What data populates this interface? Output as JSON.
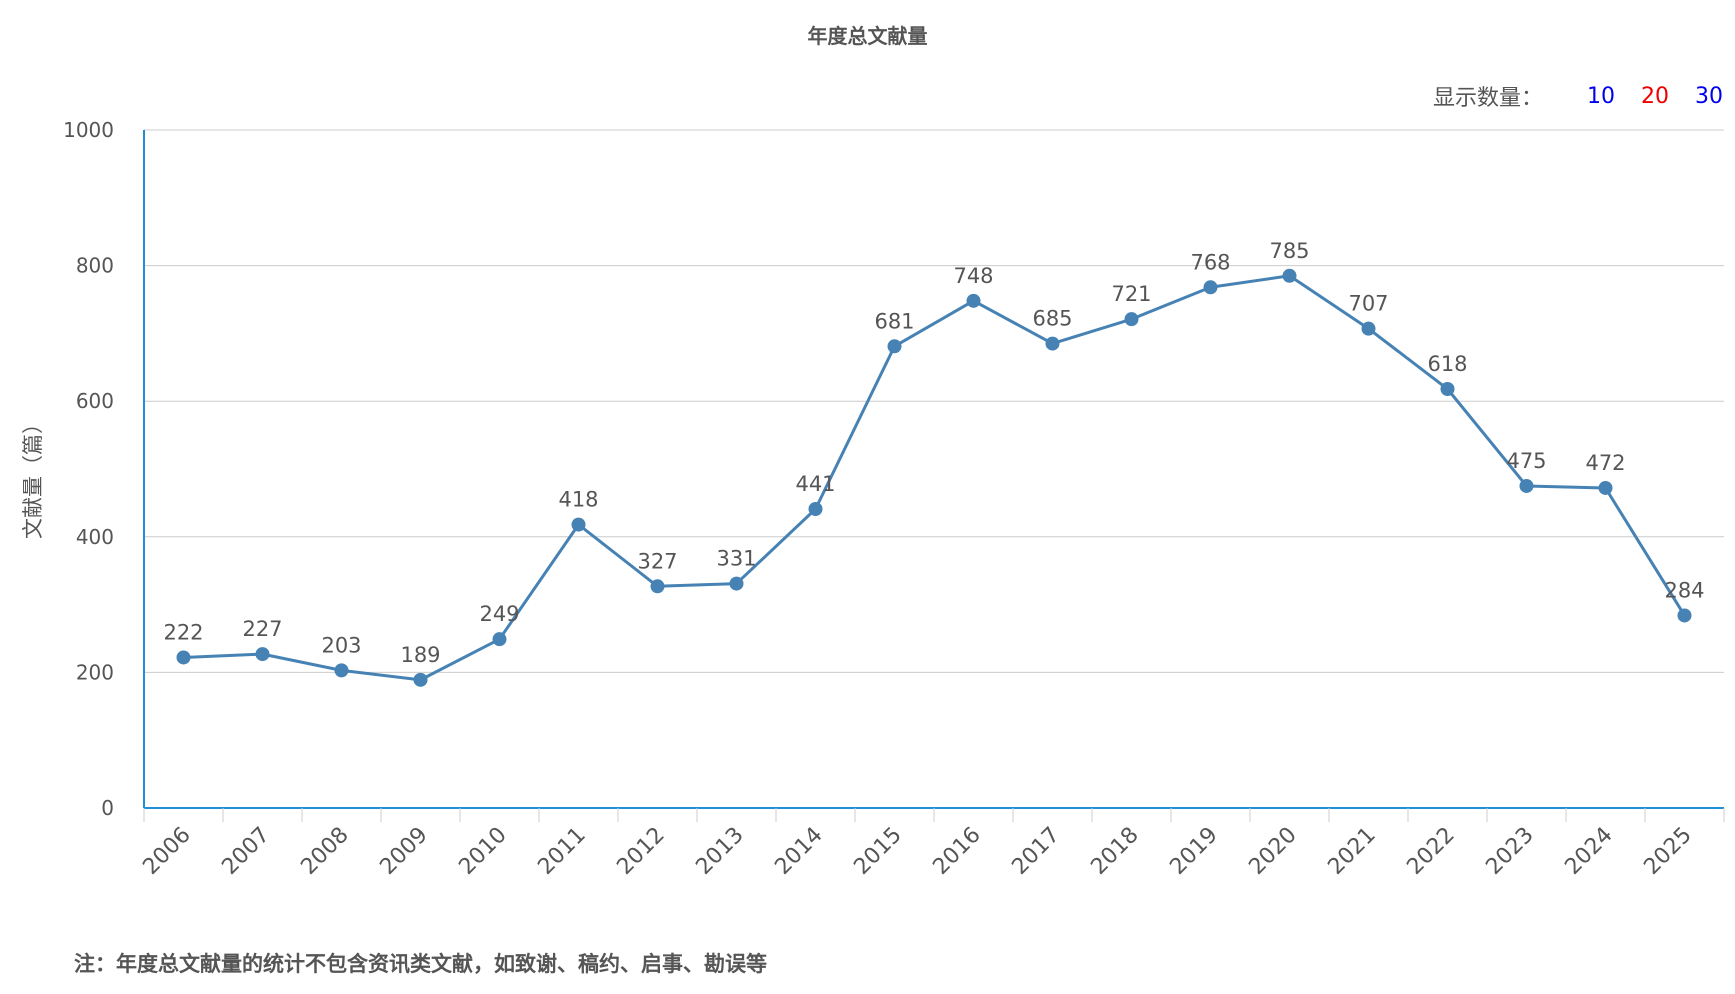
{
  "chart_data": {
    "type": "line",
    "title": "年度总文献量",
    "ylabel": "文献量（篇）",
    "xlabel": "",
    "categories": [
      "2006",
      "2007",
      "2008",
      "2009",
      "2010",
      "2011",
      "2012",
      "2013",
      "2014",
      "2015",
      "2016",
      "2017",
      "2018",
      "2019",
      "2020",
      "2021",
      "2022",
      "2023",
      "2024",
      "2025"
    ],
    "series": [
      {
        "values": [
          222,
          227,
          203,
          189,
          249,
          418,
          327,
          331,
          441,
          681,
          748,
          685,
          721,
          768,
          785,
          707,
          618,
          475,
          472,
          284
        ]
      }
    ],
    "ylim": [
      0,
      1000
    ],
    "yticks": [
      0,
      200,
      400,
      600,
      800,
      1000
    ],
    "grid": true,
    "data_labels": true,
    "line_color": "#4682b4",
    "axis_color": "#1f8fd6"
  },
  "count_selector": {
    "label": "显示数量：",
    "options": [
      {
        "value": "10",
        "color": "#0000ee"
      },
      {
        "value": "20",
        "color": "#ee0000"
      },
      {
        "value": "30",
        "color": "#0000ee"
      }
    ]
  },
  "footnote": "注：年度总文献量的统计不包含资讯类文献，如致谢、稿约、启事、勘误等"
}
